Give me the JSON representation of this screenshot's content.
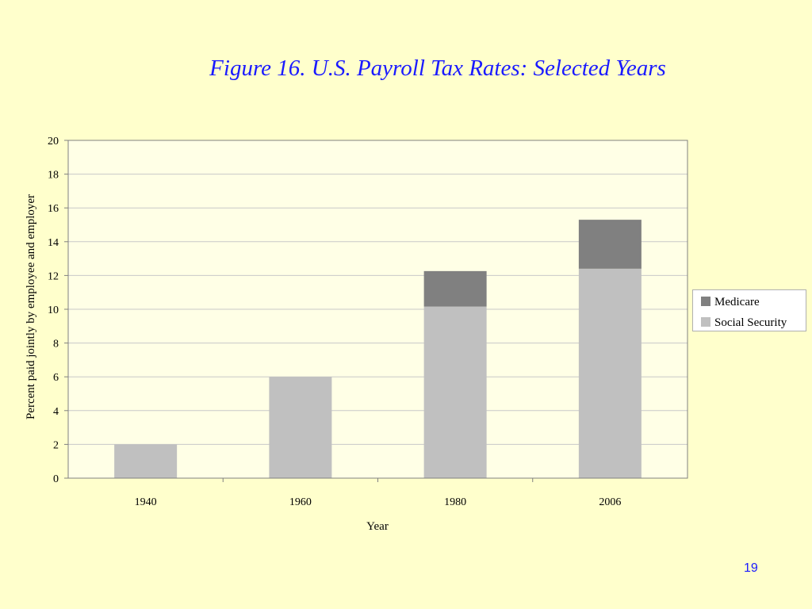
{
  "slide": {
    "title": "Figure 16.  U.S. Payroll Tax Rates: Selected Years",
    "page_number": "19"
  },
  "colors": {
    "background": "#ffffcc",
    "plot_area": "#ffffe6",
    "social_security": "#c0c0c0",
    "medicare": "#808080",
    "title": "#1a1aff"
  },
  "chart_data": {
    "type": "bar",
    "stacked": true,
    "title": "",
    "xlabel": "Year",
    "ylabel": "Percent paid jointly by employee and employer",
    "categories": [
      "1940",
      "1960",
      "1980",
      "2006"
    ],
    "ylim": [
      0,
      20
    ],
    "yticks": [
      0,
      2,
      4,
      6,
      8,
      10,
      12,
      14,
      16,
      18,
      20
    ],
    "grid": true,
    "legend_position": "right",
    "series": [
      {
        "name": "Social Security",
        "values": [
          2.0,
          6.0,
          10.16,
          12.4
        ],
        "color": "#c0c0c0"
      },
      {
        "name": "Medicare",
        "values": [
          0,
          0,
          2.1,
          2.9
        ],
        "color": "#808080"
      }
    ],
    "legend": [
      "Medicare",
      "Social Security"
    ]
  }
}
